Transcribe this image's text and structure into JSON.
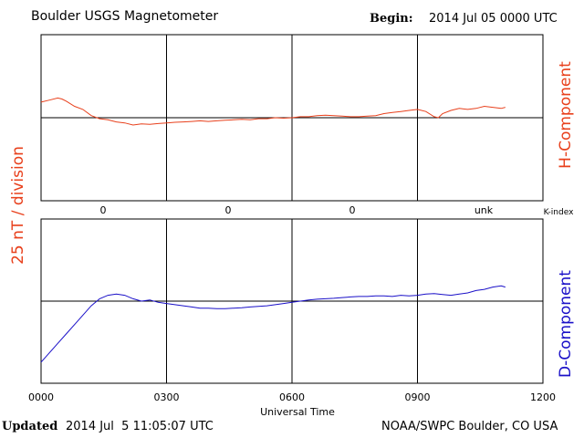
{
  "header": {
    "title": "Boulder USGS Magnetometer",
    "begin_label": "Begin:",
    "begin_value": "2014 Jul 05 0000 UTC"
  },
  "footer": {
    "updated_label": "Updated",
    "updated_value": "2014 Jul  5 11:05:07 UTC",
    "source": "NOAA/SWPC Boulder, CO USA"
  },
  "scale_label": "25 nT / division",
  "colors": {
    "h": "#e8401c",
    "d": "#1a10c8",
    "frame": "#000000",
    "scale_label": "#e8401c"
  },
  "chart_data": [
    {
      "type": "line",
      "name": "H-Component",
      "ylabel": "H-Component",
      "xlim": [
        0,
        12
      ],
      "ylim": [
        -4,
        4
      ],
      "units": "x in hours UT, y in divisions (25 nT / division)",
      "x": [
        0.0,
        0.2,
        0.4,
        0.5,
        0.6,
        0.8,
        1.0,
        1.2,
        1.4,
        1.6,
        1.8,
        2.0,
        2.2,
        2.4,
        2.6,
        2.8,
        3.0,
        3.2,
        3.4,
        3.6,
        3.8,
        4.0,
        4.2,
        4.4,
        4.6,
        4.8,
        5.0,
        5.2,
        5.4,
        5.6,
        5.8,
        6.0,
        6.2,
        6.4,
        6.6,
        6.8,
        7.0,
        7.2,
        7.4,
        7.6,
        7.8,
        8.0,
        8.2,
        8.4,
        8.6,
        8.8,
        9.0,
        9.2,
        9.4,
        9.5,
        9.6,
        9.8,
        10.0,
        10.2,
        10.4,
        10.6,
        10.8,
        11.0,
        11.1
      ],
      "y": [
        0.75,
        0.85,
        0.95,
        0.9,
        0.8,
        0.55,
        0.4,
        0.1,
        -0.05,
        -0.1,
        -0.2,
        -0.25,
        -0.35,
        -0.3,
        -0.32,
        -0.28,
        -0.25,
        -0.22,
        -0.2,
        -0.18,
        -0.15,
        -0.18,
        -0.15,
        -0.12,
        -0.1,
        -0.08,
        -0.1,
        -0.05,
        -0.05,
        0.0,
        -0.02,
        0.0,
        0.05,
        0.05,
        0.1,
        0.12,
        0.1,
        0.08,
        0.05,
        0.05,
        0.08,
        0.1,
        0.2,
        0.25,
        0.3,
        0.35,
        0.4,
        0.3,
        0.05,
        0.0,
        0.2,
        0.35,
        0.45,
        0.4,
        0.45,
        0.55,
        0.5,
        0.45,
        0.5
      ],
      "k_index": {
        "label": "K-index",
        "values": [
          "0",
          "0",
          "0",
          "unk"
        ],
        "x": [
          1.5,
          4.5,
          7.5,
          10.5
        ]
      }
    },
    {
      "type": "line",
      "name": "D-Component",
      "ylabel": "D-Component",
      "xlim": [
        0,
        12
      ],
      "ylim": [
        -3.5,
        3.5
      ],
      "xlabel": "Universal Time",
      "xticks": [
        "0000",
        "0300",
        "0600",
        "0900",
        "1200"
      ],
      "units": "x in hours UT, y in divisions (25 nT / division)",
      "x": [
        0.0,
        0.2,
        0.4,
        0.6,
        0.8,
        1.0,
        1.2,
        1.4,
        1.6,
        1.8,
        2.0,
        2.2,
        2.4,
        2.6,
        2.8,
        3.0,
        3.2,
        3.4,
        3.6,
        3.8,
        4.0,
        4.2,
        4.4,
        4.6,
        4.8,
        5.0,
        5.2,
        5.4,
        5.6,
        5.8,
        6.0,
        6.2,
        6.4,
        6.6,
        6.8,
        7.0,
        7.2,
        7.4,
        7.6,
        7.8,
        8.0,
        8.2,
        8.4,
        8.6,
        8.8,
        9.0,
        9.2,
        9.4,
        9.6,
        9.8,
        10.0,
        10.2,
        10.4,
        10.6,
        10.8,
        11.0,
        11.1
      ],
      "y": [
        -2.6,
        -2.2,
        -1.8,
        -1.4,
        -1.0,
        -0.6,
        -0.2,
        0.1,
        0.25,
        0.3,
        0.25,
        0.1,
        0.0,
        0.05,
        -0.05,
        -0.1,
        -0.15,
        -0.2,
        -0.25,
        -0.3,
        -0.3,
        -0.32,
        -0.32,
        -0.3,
        -0.28,
        -0.25,
        -0.22,
        -0.2,
        -0.15,
        -0.1,
        -0.05,
        0.0,
        0.05,
        0.08,
        0.1,
        0.12,
        0.15,
        0.18,
        0.2,
        0.2,
        0.22,
        0.22,
        0.2,
        0.25,
        0.22,
        0.25,
        0.3,
        0.32,
        0.28,
        0.25,
        0.3,
        0.35,
        0.45,
        0.5,
        0.6,
        0.65,
        0.6
      ]
    }
  ]
}
